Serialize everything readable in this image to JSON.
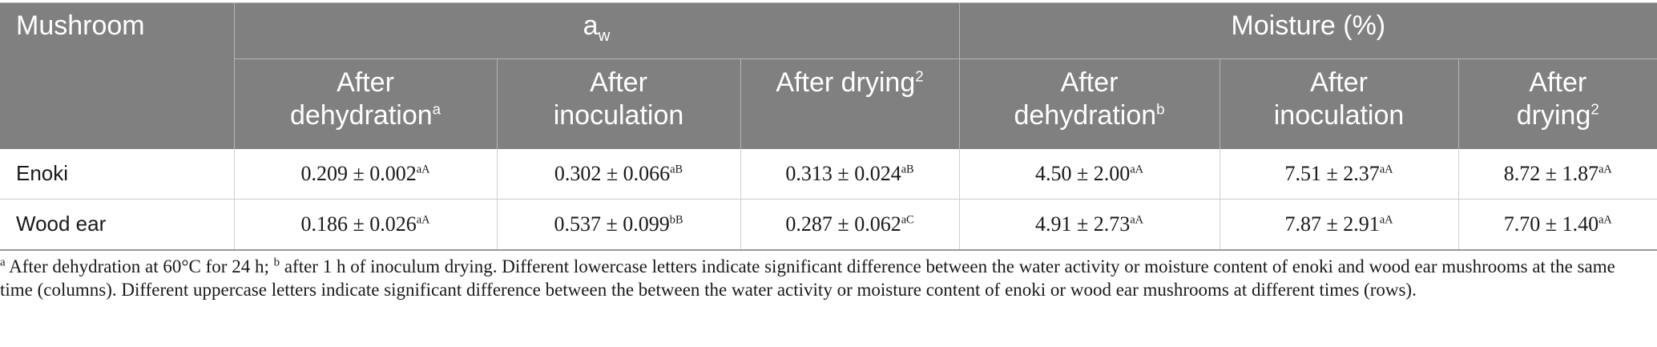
{
  "table": {
    "header_row1": {
      "mushroom": "Mushroom",
      "aw_base": "a",
      "aw_sub": "w",
      "moisture": "Moisture (%)"
    },
    "header_row2": [
      {
        "text": "After dehydration",
        "sup": "a"
      },
      {
        "text": "After inoculation",
        "sup": ""
      },
      {
        "text": "After drying",
        "sup": "2"
      },
      {
        "text": "After dehydration",
        "sup": "b"
      },
      {
        "text": "After inoculation",
        "sup": ""
      },
      {
        "text": "After drying",
        "sup": "2"
      }
    ],
    "rows": [
      {
        "name": "Enoki",
        "cells": [
          {
            "value": "0.209 ± 0.002",
            "sup": "aA"
          },
          {
            "value": "0.302 ± 0.066",
            "sup": "aB"
          },
          {
            "value": "0.313 ± 0.024",
            "sup": "aB"
          },
          {
            "value": "4.50 ± 2.00",
            "sup": "aA"
          },
          {
            "value": "7.51 ± 2.37",
            "sup": "aA"
          },
          {
            "value": "8.72 ± 1.87",
            "sup": "aA"
          }
        ]
      },
      {
        "name": "Wood ear",
        "cells": [
          {
            "value": "0.186 ± 0.026",
            "sup": "aA"
          },
          {
            "value": "0.537 ± 0.099",
            "sup": "bB"
          },
          {
            "value": "0.287 ± 0.062",
            "sup": "aC"
          },
          {
            "value": "4.91 ± 2.73",
            "sup": "aA"
          },
          {
            "value": "7.87 ± 2.91",
            "sup": "aA"
          },
          {
            "value": "7.70 ± 1.40",
            "sup": "aA"
          }
        ]
      }
    ]
  },
  "footnote": {
    "sup_a": "a",
    "part1": " After dehydration at 60°C for 24 h; ",
    "sup_b": "b",
    "part2": " after 1 h of inoculum drying. Different lowercase letters indicate significant difference between the water activity or moisture content of enoki and wood ear mushrooms at the same time (columns). Different uppercase letters indicate significant difference between the between the water activity or moisture content of enoki or wood ear mushrooms at different times (rows)."
  },
  "colors": {
    "header_bg": "#808080",
    "header_text": "#ffffff",
    "body_text": "#1a1a1a"
  }
}
